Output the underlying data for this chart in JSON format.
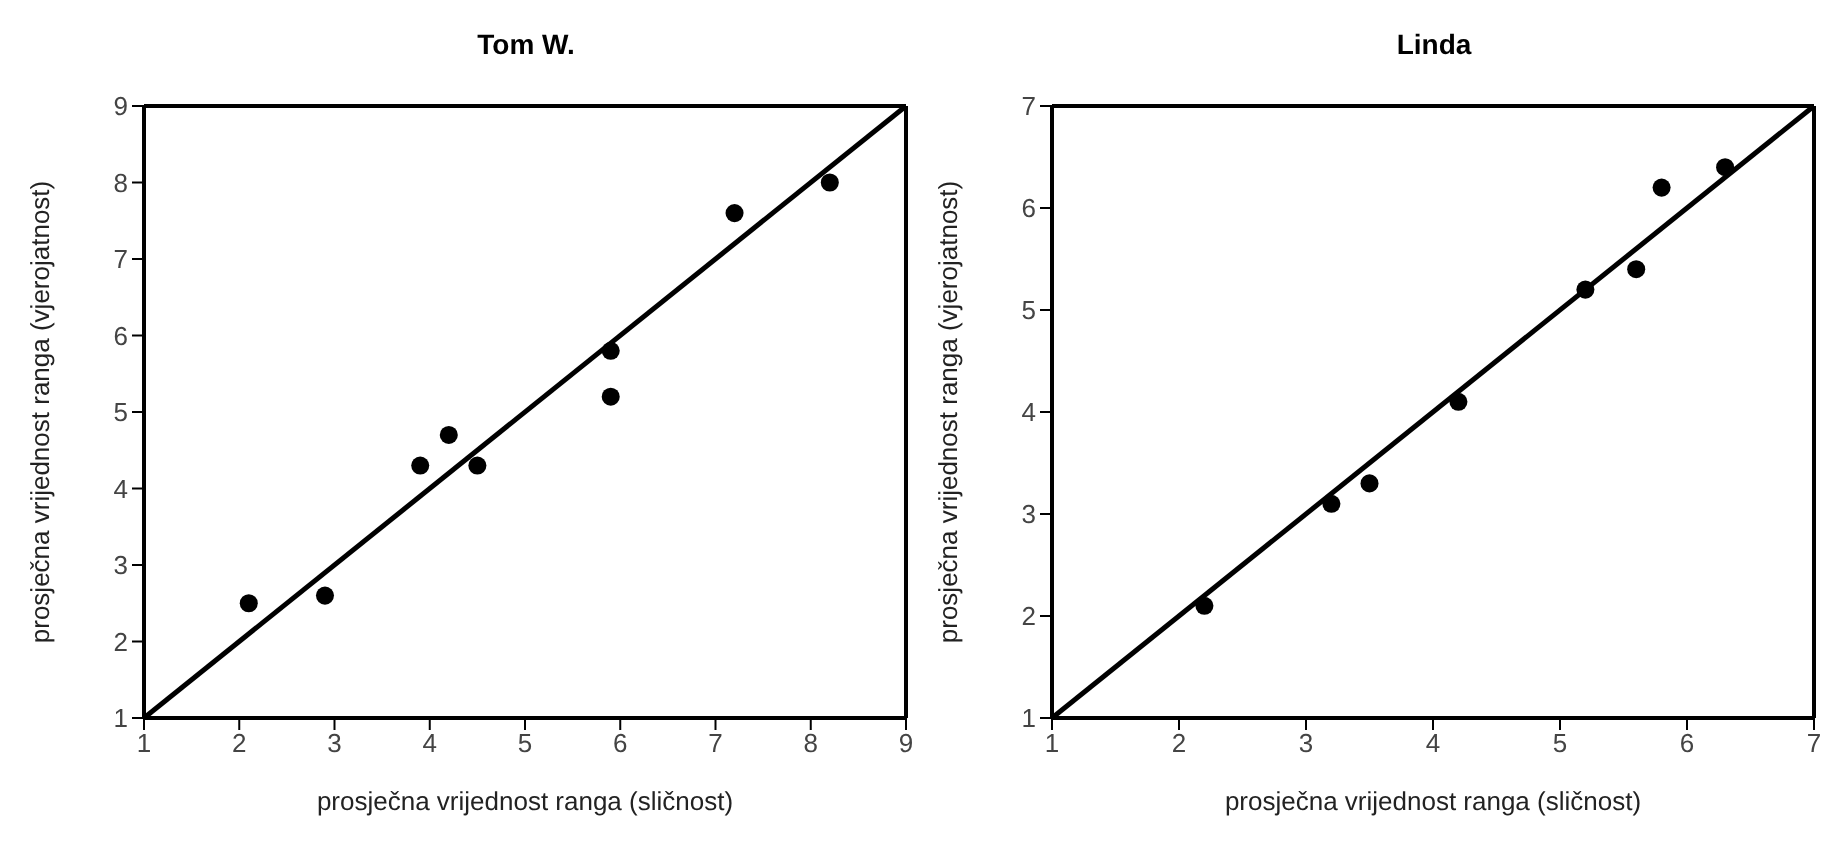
{
  "chart_data": [
    {
      "type": "scatter",
      "title": "Tom W.",
      "xlabel": "prosječna vrijednost ranga (sličnost)",
      "ylabel": "prosječna vrijednost ranga (vjerojatnost)",
      "xlim": [
        1,
        9
      ],
      "ylim": [
        1,
        9
      ],
      "xticks": [
        1,
        2,
        3,
        4,
        5,
        6,
        7,
        8,
        9
      ],
      "yticks": [
        1,
        2,
        3,
        4,
        5,
        6,
        7,
        8,
        9
      ],
      "series": [
        {
          "color": "#000000",
          "marker": "circle",
          "x": [
            2.1,
            2.9,
            3.9,
            4.2,
            4.5,
            5.9,
            5.9,
            7.2,
            8.2
          ],
          "values": [
            2.5,
            2.6,
            4.3,
            4.7,
            4.3,
            5.8,
            5.2,
            7.6,
            8.0
          ]
        },
        {
          "type": "line",
          "color": "#000000",
          "marker": "none",
          "x": [
            1,
            9
          ],
          "values": [
            1,
            9
          ]
        }
      ]
    },
    {
      "type": "scatter",
      "title": "Linda",
      "xlabel": "prosječna vrijednost ranga (sličnost)",
      "ylabel": "prosječna vrijednost ranga (vjerojatnost)",
      "xlim": [
        1,
        7
      ],
      "ylim": [
        1,
        7
      ],
      "xticks": [
        1,
        2,
        3,
        4,
        5,
        6,
        7
      ],
      "yticks": [
        1,
        2,
        3,
        4,
        5,
        6,
        7
      ],
      "series": [
        {
          "color": "#000000",
          "marker": "circle",
          "x": [
            2.2,
            3.2,
            3.5,
            4.2,
            5.2,
            5.6,
            5.8,
            6.3
          ],
          "values": [
            2.1,
            3.1,
            3.3,
            4.1,
            5.2,
            5.4,
            6.2,
            6.4
          ]
        },
        {
          "type": "line",
          "color": "#000000",
          "marker": "none",
          "x": [
            1,
            7
          ],
          "values": [
            1,
            7
          ]
        }
      ]
    }
  ]
}
